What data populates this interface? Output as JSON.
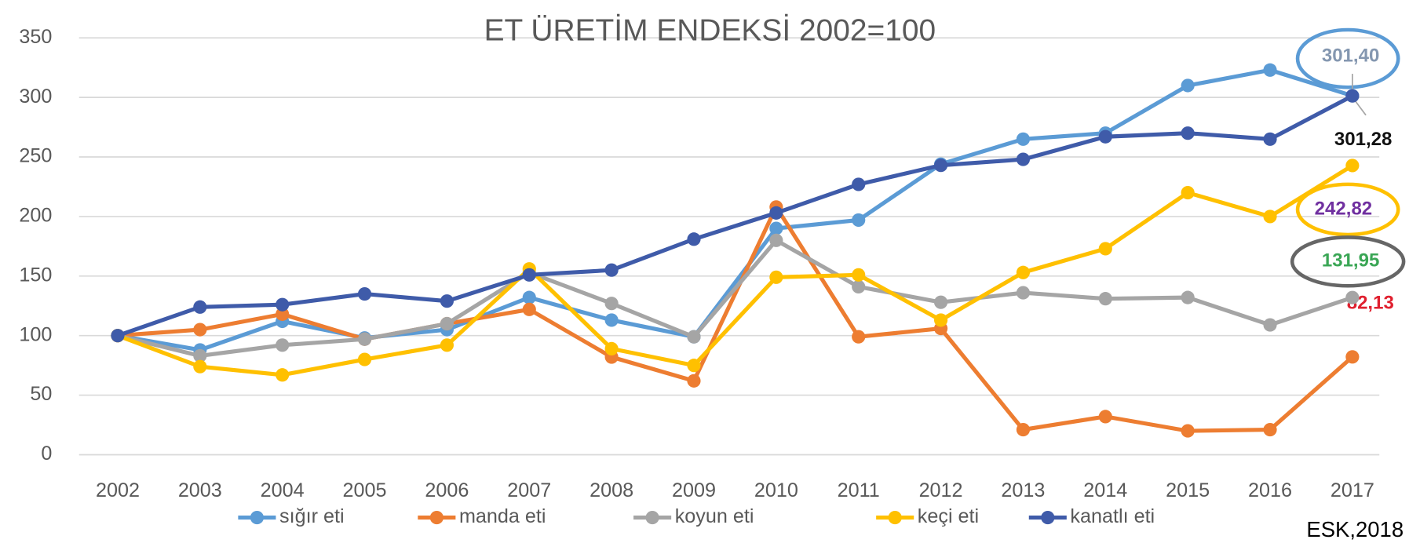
{
  "chart_data": {
    "type": "line",
    "title": "ET ÜRETİM ENDEKSİ 2002=100",
    "categories": [
      "2002",
      "2003",
      "2004",
      "2005",
      "2006",
      "2007",
      "2008",
      "2009",
      "2010",
      "2011",
      "2012",
      "2013",
      "2014",
      "2015",
      "2016",
      "2017"
    ],
    "series": [
      {
        "name": "sığır eti",
        "color": "#5b9bd5",
        "values": [
          100,
          88,
          112,
          98,
          105,
          132,
          113,
          99,
          190,
          197,
          244,
          265,
          270,
          310,
          323,
          301.4
        ],
        "value_labels": [
          null,
          null,
          null,
          null,
          null,
          null,
          null,
          null,
          null,
          null,
          null,
          null,
          null,
          null,
          null,
          "301,40"
        ]
      },
      {
        "name": "manda eti",
        "color": "#ed7d31",
        "values": [
          100,
          105,
          118,
          97,
          110,
          122,
          82,
          62,
          208,
          99,
          106,
          21,
          32,
          20,
          21,
          82.13
        ],
        "value_labels": [
          null,
          null,
          null,
          null,
          null,
          null,
          null,
          null,
          null,
          null,
          null,
          null,
          null,
          null,
          null,
          "82,13"
        ]
      },
      {
        "name": "koyun eti",
        "color": "#a5a5a5",
        "values": [
          100,
          83,
          92,
          97,
          110,
          153,
          127,
          99,
          180,
          141,
          128,
          136,
          131,
          132,
          109,
          131.95
        ],
        "value_labels": [
          null,
          null,
          null,
          null,
          null,
          null,
          null,
          null,
          null,
          null,
          null,
          null,
          null,
          null,
          null,
          "131,95"
        ]
      },
      {
        "name": "keçi eti",
        "color": "#ffc000",
        "values": [
          100,
          74,
          67,
          80,
          92,
          156,
          89,
          75,
          149,
          151,
          113,
          153,
          173,
          220,
          200,
          242.82
        ],
        "value_labels": [
          null,
          null,
          null,
          null,
          null,
          null,
          null,
          null,
          null,
          null,
          null,
          null,
          null,
          null,
          null,
          "242,82"
        ]
      },
      {
        "name": "kanatlı eti",
        "color": "#3f5ba9",
        "values": [
          100,
          124,
          126,
          135,
          129,
          151,
          155,
          181,
          203,
          227,
          243,
          248,
          267,
          270,
          265,
          301.28
        ],
        "value_labels": [
          null,
          null,
          null,
          null,
          null,
          null,
          null,
          null,
          null,
          null,
          null,
          null,
          null,
          null,
          null,
          "301,28"
        ]
      }
    ],
    "ylim": [
      0,
      350
    ],
    "yticks": [
      0,
      50,
      100,
      150,
      200,
      250,
      300,
      350
    ],
    "grid": true,
    "legend": "bottom",
    "source": "ESK,2018"
  }
}
